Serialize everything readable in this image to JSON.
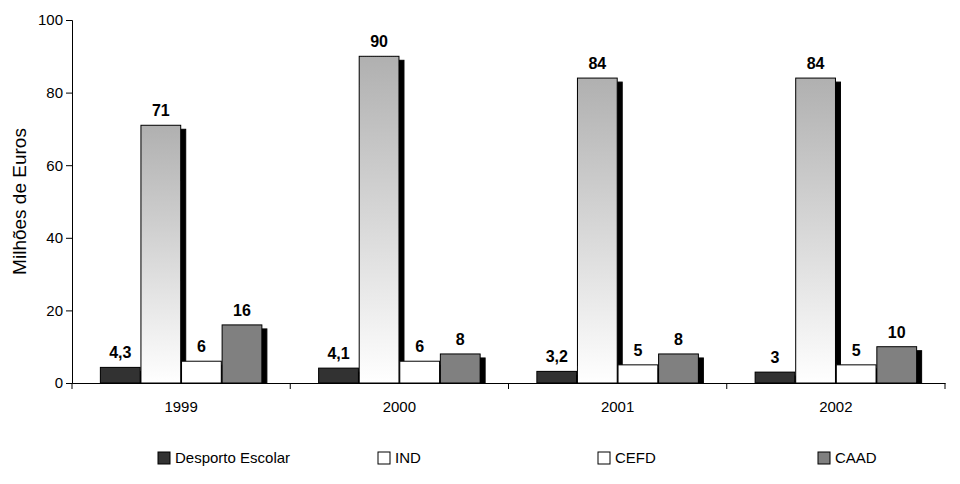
{
  "chart_data": {
    "type": "bar",
    "y_label": "Milhões de Euros",
    "categories": [
      "1999",
      "2000",
      "2001",
      "2002"
    ],
    "series": [
      {
        "name": "Desporto Escolar",
        "color": "#333333",
        "values": [
          4.3,
          4.1,
          3.2,
          3
        ],
        "value_labels": [
          "4,3",
          "4,1",
          "3,2",
          "3"
        ]
      },
      {
        "name": "IND",
        "color": "#b0b0b0",
        "values": [
          71,
          90,
          84,
          84
        ]
      },
      {
        "name": "CEFD",
        "color": "#ffffff",
        "values": [
          6,
          6,
          5,
          5
        ]
      },
      {
        "name": "CAAD",
        "color": "#808080",
        "values": [
          16,
          8,
          8,
          10
        ]
      }
    ],
    "ylim": [
      0,
      100
    ],
    "yticks": [
      0,
      20,
      40,
      60,
      80,
      100
    ],
    "grid": false,
    "legend": "bottom",
    "data_labels": true
  }
}
